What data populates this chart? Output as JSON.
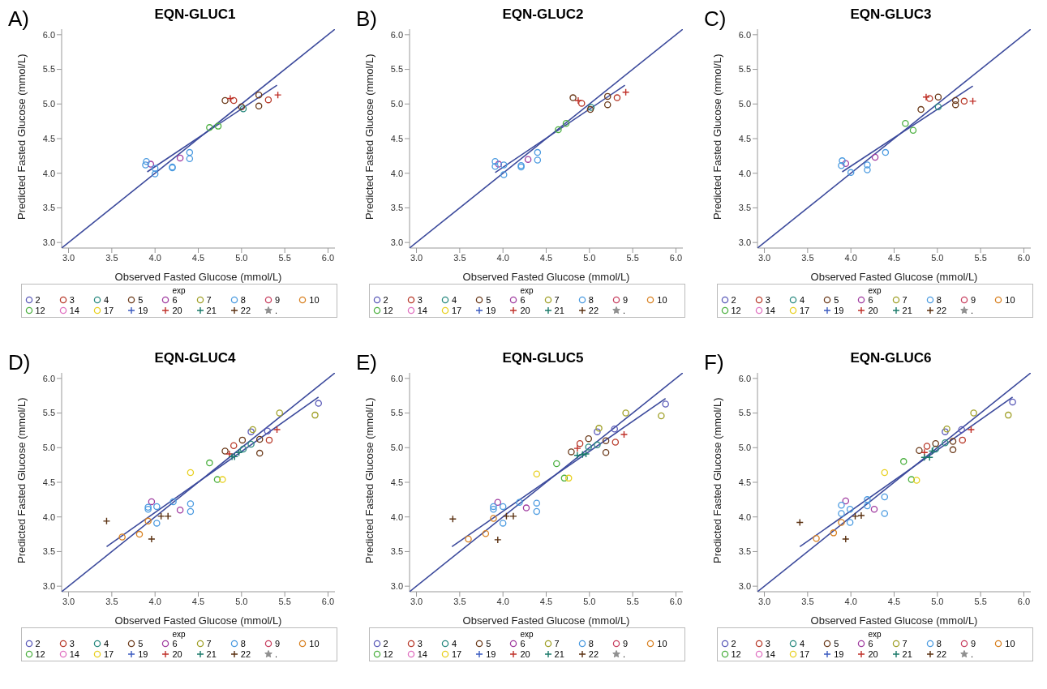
{
  "chart_data": [
    {
      "type": "scatter",
      "title": "EQN-GLUC1",
      "xlabel": "Observed Fasted Glucose (mmol/L)",
      "ylabel": "Predicted Fasted Glucose (mmol/L)",
      "legend_title": "exp",
      "legend": "bottom",
      "annotations": [
        "A)"
      ],
      "xlim": [
        2.92,
        6.08
      ],
      "ylim": [
        2.92,
        6.08
      ],
      "xticks": [
        {
          "value": 3,
          "label": "3.0"
        },
        {
          "value": 3.5,
          "label": "3.5"
        },
        {
          "value": 4,
          "label": "4.0"
        },
        {
          "value": 4.5,
          "label": "4.5"
        },
        {
          "value": 5,
          "label": "5.0"
        },
        {
          "value": 5.5,
          "label": "5.5"
        },
        {
          "value": 6,
          "label": "6.0"
        }
      ],
      "yticks": [
        {
          "value": 3,
          "label": "3.0"
        },
        {
          "value": 3.5,
          "label": "3.5"
        },
        {
          "value": 4,
          "label": "4.0"
        },
        {
          "value": 4.5,
          "label": "4.5"
        },
        {
          "value": 5,
          "label": "5.0"
        },
        {
          "value": 5.5,
          "label": "5.5"
        },
        {
          "value": 6,
          "label": "6.0"
        }
      ],
      "series": [
        {
          "name": "2",
          "color": "#5a5ab8",
          "marker": "circle"
        },
        {
          "name": "3",
          "color": "#b83a2a",
          "marker": "circle",
          "x": [
            4.91,
            5.31
          ],
          "values": [
            5.05,
            5.06
          ]
        },
        {
          "name": "4",
          "color": "#2a8a80",
          "marker": "circle",
          "x": [
            5.02
          ],
          "values": [
            4.93
          ]
        },
        {
          "name": "5",
          "color": "#6b3a1a",
          "marker": "circle",
          "x": [
            4.81,
            5.0,
            5.2,
            5.2
          ],
          "values": [
            5.05,
            4.96,
            5.13,
            4.97
          ]
        },
        {
          "name": "6",
          "color": "#a03ca0",
          "marker": "circle",
          "x": [
            3.95,
            4.29
          ],
          "values": [
            4.13,
            4.22
          ]
        },
        {
          "name": "7",
          "color": "#a0a028",
          "marker": "circle"
        },
        {
          "name": "8",
          "color": "#4a9ae0",
          "marker": "circle",
          "x": [
            3.9,
            3.89,
            4.0,
            4.0,
            4.2,
            4.2,
            4.4,
            4.4
          ],
          "values": [
            4.17,
            4.12,
            4.07,
            3.99,
            4.09,
            4.08,
            4.3,
            4.21
          ]
        },
        {
          "name": "9",
          "color": "#c84060",
          "marker": "circle"
        },
        {
          "name": "10",
          "color": "#d88020",
          "marker": "circle"
        },
        {
          "name": "12",
          "color": "#4cb040",
          "marker": "circle",
          "x": [
            4.63,
            4.73
          ],
          "values": [
            4.66,
            4.68
          ]
        },
        {
          "name": "14",
          "color": "#e070c0",
          "marker": "circle"
        },
        {
          "name": "17",
          "color": "#e8d020",
          "marker": "circle"
        },
        {
          "name": "19",
          "color": "#3a5ac0",
          "marker": "cross"
        },
        {
          "name": "20",
          "color": "#c03028",
          "marker": "cross",
          "x": [
            4.87,
            5.42
          ],
          "values": [
            5.08,
            5.13
          ]
        },
        {
          "name": "21",
          "color": "#1a7a6a",
          "marker": "cross"
        },
        {
          "name": "22",
          "color": "#5a3010",
          "marker": "cross"
        },
        {
          "name": ".",
          "color": "#909090",
          "marker": "star"
        },
        {
          "type": "line",
          "color": "#3c4a9c",
          "x": [
            2.92,
            6.08
          ],
          "values": [
            2.92,
            6.08
          ]
        },
        {
          "type": "line",
          "color": "#3c4a9c",
          "x": [
            3.91,
            5.41
          ],
          "values": [
            4.02,
            5.27
          ]
        }
      ]
    },
    {
      "type": "scatter",
      "title": "EQN-GLUC2",
      "xlabel": "Observed Fasted Glucose (mmol/L)",
      "ylabel": "Predicted Fasted Glucose (mmol/L)",
      "legend_title": "exp",
      "legend": "bottom",
      "annotations": [
        "B)"
      ],
      "xlim": [
        2.92,
        6.08
      ],
      "ylim": [
        2.92,
        6.08
      ],
      "xticks": [
        {
          "value": 3,
          "label": "3.0"
        },
        {
          "value": 3.5,
          "label": "3.5"
        },
        {
          "value": 4,
          "label": "4.0"
        },
        {
          "value": 4.5,
          "label": "4.5"
        },
        {
          "value": 5,
          "label": "5.0"
        },
        {
          "value": 5.5,
          "label": "5.5"
        },
        {
          "value": 6,
          "label": "6.0"
        }
      ],
      "yticks": [
        {
          "value": 3,
          "label": "3.0"
        },
        {
          "value": 3.5,
          "label": "3.5"
        },
        {
          "value": 4,
          "label": "4.0"
        },
        {
          "value": 4.5,
          "label": "4.5"
        },
        {
          "value": 5,
          "label": "5.0"
        },
        {
          "value": 5.5,
          "label": "5.5"
        },
        {
          "value": 6,
          "label": "6.0"
        }
      ],
      "series": [
        {
          "name": "2",
          "color": "#5a5ab8",
          "marker": "circle"
        },
        {
          "name": "3",
          "color": "#b83a2a",
          "marker": "circle",
          "x": [
            4.91,
            5.32
          ],
          "values": [
            5.01,
            5.09
          ]
        },
        {
          "name": "4",
          "color": "#2a8a80",
          "marker": "circle",
          "x": [
            5.02
          ],
          "values": [
            4.95
          ]
        },
        {
          "name": "5",
          "color": "#6b3a1a",
          "marker": "circle",
          "x": [
            4.81,
            5.01,
            5.21,
            5.21
          ],
          "values": [
            5.09,
            4.92,
            5.11,
            4.99
          ]
        },
        {
          "name": "6",
          "color": "#a03ca0",
          "marker": "circle",
          "x": [
            3.95,
            4.29
          ],
          "values": [
            4.13,
            4.2
          ]
        },
        {
          "name": "7",
          "color": "#a0a028",
          "marker": "circle"
        },
        {
          "name": "8",
          "color": "#4a9ae0",
          "marker": "circle",
          "x": [
            3.91,
            3.91,
            4.01,
            4.01,
            4.21,
            4.21,
            4.4,
            4.4
          ],
          "values": [
            4.17,
            4.1,
            4.12,
            3.98,
            4.11,
            4.09,
            4.3,
            4.19
          ]
        },
        {
          "name": "9",
          "color": "#c84060",
          "marker": "circle"
        },
        {
          "name": "10",
          "color": "#d88020",
          "marker": "circle"
        },
        {
          "name": "12",
          "color": "#4cb040",
          "marker": "circle",
          "x": [
            4.64,
            4.73
          ],
          "values": [
            4.63,
            4.72
          ]
        },
        {
          "name": "14",
          "color": "#e070c0",
          "marker": "circle"
        },
        {
          "name": "17",
          "color": "#e8d020",
          "marker": "circle"
        },
        {
          "name": "19",
          "color": "#3a5ac0",
          "marker": "cross"
        },
        {
          "name": "20",
          "color": "#c03028",
          "marker": "cross",
          "x": [
            4.87,
            5.42
          ],
          "values": [
            5.05,
            5.17
          ]
        },
        {
          "name": "21",
          "color": "#1a7a6a",
          "marker": "cross"
        },
        {
          "name": "22",
          "color": "#5a3010",
          "marker": "cross"
        },
        {
          "name": ".",
          "color": "#909090",
          "marker": "star"
        },
        {
          "type": "line",
          "color": "#3c4a9c",
          "x": [
            2.92,
            6.08
          ],
          "values": [
            2.92,
            6.08
          ]
        },
        {
          "type": "line",
          "color": "#3c4a9c",
          "x": [
            3.91,
            5.41
          ],
          "values": [
            4.01,
            5.27
          ]
        }
      ]
    },
    {
      "type": "scatter",
      "title": "EQN-GLUC3",
      "xlabel": "Observed Fasted Glucose (mmol/L)",
      "ylabel": "Predicted Fasted Glucose (mmol/L)",
      "legend_title": "exp",
      "legend": "bottom",
      "annotations": [
        "C)"
      ],
      "xlim": [
        2.92,
        6.08
      ],
      "ylim": [
        2.92,
        6.08
      ],
      "xticks": [
        {
          "value": 3,
          "label": "3.0"
        },
        {
          "value": 3.5,
          "label": "3.5"
        },
        {
          "value": 4,
          "label": "4.0"
        },
        {
          "value": 4.5,
          "label": "4.5"
        },
        {
          "value": 5,
          "label": "5.0"
        },
        {
          "value": 5.5,
          "label": "5.5"
        },
        {
          "value": 6,
          "label": "6.0"
        }
      ],
      "yticks": [
        {
          "value": 3,
          "label": "3.0"
        },
        {
          "value": 3.5,
          "label": "3.5"
        },
        {
          "value": 4,
          "label": "4.0"
        },
        {
          "value": 4.5,
          "label": "4.5"
        },
        {
          "value": 5,
          "label": "5.0"
        },
        {
          "value": 5.5,
          "label": "5.5"
        },
        {
          "value": 6,
          "label": "6.0"
        }
      ],
      "series": [
        {
          "name": "2",
          "color": "#5a5ab8",
          "marker": "circle"
        },
        {
          "name": "3",
          "color": "#b83a2a",
          "marker": "circle",
          "x": [
            4.91,
            5.31
          ],
          "values": [
            5.08,
            5.04
          ]
        },
        {
          "name": "4",
          "color": "#2a8a80",
          "marker": "circle",
          "x": [
            5.01
          ],
          "values": [
            4.96
          ]
        },
        {
          "name": "5",
          "color": "#6b3a1a",
          "marker": "circle",
          "x": [
            4.81,
            5.01,
            5.21,
            5.21
          ],
          "values": [
            4.92,
            5.1,
            5.05,
            4.99
          ]
        },
        {
          "name": "6",
          "color": "#a03ca0",
          "marker": "circle",
          "x": [
            3.94,
            4.28
          ],
          "values": [
            4.14,
            4.23
          ]
        },
        {
          "name": "7",
          "color": "#a0a028",
          "marker": "circle"
        },
        {
          "name": "8",
          "color": "#4a9ae0",
          "marker": "circle",
          "x": [
            3.9,
            3.89,
            4.0,
            4.19,
            4.19,
            4.4
          ],
          "values": [
            4.18,
            4.11,
            4.01,
            4.12,
            4.05,
            4.3
          ]
        },
        {
          "name": "9",
          "color": "#c84060",
          "marker": "circle"
        },
        {
          "name": "10",
          "color": "#d88020",
          "marker": "circle"
        },
        {
          "name": "12",
          "color": "#4cb040",
          "marker": "circle",
          "x": [
            4.63,
            4.72
          ],
          "values": [
            4.72,
            4.62
          ]
        },
        {
          "name": "14",
          "color": "#e070c0",
          "marker": "circle"
        },
        {
          "name": "17",
          "color": "#e8d020",
          "marker": "circle"
        },
        {
          "name": "19",
          "color": "#3a5ac0",
          "marker": "cross"
        },
        {
          "name": "20",
          "color": "#c03028",
          "marker": "cross",
          "x": [
            4.87,
            5.41
          ],
          "values": [
            5.1,
            5.04
          ]
        },
        {
          "name": "21",
          "color": "#1a7a6a",
          "marker": "cross"
        },
        {
          "name": "22",
          "color": "#5a3010",
          "marker": "cross"
        },
        {
          "name": ".",
          "color": "#909090",
          "marker": "star"
        },
        {
          "type": "line",
          "color": "#3c4a9c",
          "x": [
            2.92,
            6.08
          ],
          "values": [
            2.92,
            6.08
          ]
        },
        {
          "type": "line",
          "color": "#3c4a9c",
          "x": [
            3.9,
            5.41
          ],
          "values": [
            4.02,
            5.26
          ]
        }
      ]
    },
    {
      "type": "scatter",
      "title": "EQN-GLUC4",
      "xlabel": "Observed Fasted Glucose (mmol/L)",
      "ylabel": "Predicted Fasted Glucose (mmol/L)",
      "legend_title": "exp",
      "legend": "bottom",
      "annotations": [
        "D)"
      ],
      "xlim": [
        2.92,
        6.08
      ],
      "ylim": [
        2.92,
        6.08
      ],
      "xticks": [
        {
          "value": 3,
          "label": "3.0"
        },
        {
          "value": 3.5,
          "label": "3.5"
        },
        {
          "value": 4,
          "label": "4.0"
        },
        {
          "value": 4.5,
          "label": "4.5"
        },
        {
          "value": 5,
          "label": "5.0"
        },
        {
          "value": 5.5,
          "label": "5.5"
        },
        {
          "value": 6,
          "label": "6.0"
        }
      ],
      "yticks": [
        {
          "value": 3,
          "label": "3.0"
        },
        {
          "value": 3.5,
          "label": "3.5"
        },
        {
          "value": 4,
          "label": "4.0"
        },
        {
          "value": 4.5,
          "label": "4.5"
        },
        {
          "value": 5,
          "label": "5.0"
        },
        {
          "value": 5.5,
          "label": "5.5"
        },
        {
          "value": 6,
          "label": "6.0"
        }
      ],
      "series": [
        {
          "name": "2",
          "color": "#5a5ab8",
          "marker": "circle",
          "x": [
            5.11,
            5.3,
            5.89
          ],
          "values": [
            5.23,
            5.24,
            5.64
          ]
        },
        {
          "name": "3",
          "color": "#b83a2a",
          "marker": "circle",
          "x": [
            4.91,
            5.32
          ],
          "values": [
            5.03,
            5.11
          ]
        },
        {
          "name": "4",
          "color": "#2a8a80",
          "marker": "circle",
          "x": [
            5.02,
            5.11
          ],
          "values": [
            4.98,
            5.05
          ]
        },
        {
          "name": "5",
          "color": "#6b3a1a",
          "marker": "circle",
          "x": [
            4.81,
            5.01,
            5.21,
            5.21
          ],
          "values": [
            4.95,
            5.11,
            5.12,
            4.92
          ]
        },
        {
          "name": "6",
          "color": "#a03ca0",
          "marker": "circle",
          "x": [
            3.96,
            4.29
          ],
          "values": [
            4.22,
            4.1
          ]
        },
        {
          "name": "7",
          "color": "#a0a028",
          "marker": "circle",
          "x": [
            5.13,
            5.44,
            5.85
          ],
          "values": [
            5.26,
            5.5,
            5.47
          ]
        },
        {
          "name": "8",
          "color": "#4a9ae0",
          "marker": "circle",
          "x": [
            3.92,
            3.92,
            4.02,
            4.02,
            4.21,
            4.41,
            4.41
          ],
          "values": [
            4.14,
            4.11,
            4.15,
            3.91,
            4.22,
            4.19,
            4.08
          ]
        },
        {
          "name": "9",
          "color": "#c84060",
          "marker": "circle"
        },
        {
          "name": "10",
          "color": "#d88020",
          "marker": "circle",
          "x": [
            3.62,
            3.82,
            3.92
          ],
          "values": [
            3.71,
            3.75,
            3.94
          ]
        },
        {
          "name": "12",
          "color": "#4cb040",
          "marker": "circle",
          "x": [
            4.63,
            4.72
          ],
          "values": [
            4.78,
            4.54
          ]
        },
        {
          "name": "14",
          "color": "#e070c0",
          "marker": "circle"
        },
        {
          "name": "17",
          "color": "#e8d020",
          "marker": "circle",
          "x": [
            4.41,
            4.78
          ],
          "values": [
            4.64,
            4.54
          ]
        },
        {
          "name": "19",
          "color": "#3a5ac0",
          "marker": "cross"
        },
        {
          "name": "20",
          "color": "#c03028",
          "marker": "cross",
          "x": [
            4.86,
            5.41
          ],
          "values": [
            4.91,
            5.26
          ]
        },
        {
          "name": "21",
          "color": "#1a7a6a",
          "marker": "cross",
          "x": [
            4.89,
            4.92,
            4.97
          ],
          "values": [
            4.87,
            4.87,
            4.93
          ]
        },
        {
          "name": "22",
          "color": "#5a3010",
          "marker": "cross",
          "x": [
            3.44,
            3.96,
            4.07,
            4.15
          ],
          "values": [
            3.94,
            3.68,
            4.01,
            4.01
          ]
        },
        {
          "name": ".",
          "color": "#909090",
          "marker": "star"
        },
        {
          "type": "line",
          "color": "#3c4a9c",
          "x": [
            2.92,
            6.08
          ],
          "values": [
            2.92,
            6.08
          ]
        },
        {
          "type": "line",
          "color": "#3c4a9c",
          "x": [
            3.44,
            5.89
          ],
          "values": [
            3.57,
            5.73
          ]
        }
      ]
    },
    {
      "type": "scatter",
      "title": "EQN-GLUC5",
      "xlabel": "Observed Fasted Glucose (mmol/L)",
      "ylabel": "Predicted Fasted Glucose (mmol/L)",
      "legend_title": "exp",
      "legend": "bottom",
      "annotations": [
        "E)"
      ],
      "xlim": [
        2.92,
        6.08
      ],
      "ylim": [
        2.92,
        6.08
      ],
      "xticks": [
        {
          "value": 3,
          "label": "3.0"
        },
        {
          "value": 3.5,
          "label": "3.5"
        },
        {
          "value": 4,
          "label": "4.0"
        },
        {
          "value": 4.5,
          "label": "4.5"
        },
        {
          "value": 5,
          "label": "5.0"
        },
        {
          "value": 5.5,
          "label": "5.5"
        },
        {
          "value": 6,
          "label": "6.0"
        }
      ],
      "yticks": [
        {
          "value": 3,
          "label": "3.0"
        },
        {
          "value": 3.5,
          "label": "3.5"
        },
        {
          "value": 4,
          "label": "4.0"
        },
        {
          "value": 4.5,
          "label": "4.5"
        },
        {
          "value": 5,
          "label": "5.0"
        },
        {
          "value": 5.5,
          "label": "5.5"
        },
        {
          "value": 6,
          "label": "6.0"
        }
      ],
      "series": [
        {
          "name": "2",
          "color": "#5a5ab8",
          "marker": "circle",
          "x": [
            5.09,
            5.29,
            5.88
          ],
          "values": [
            5.23,
            5.27,
            5.63
          ]
        },
        {
          "name": "3",
          "color": "#b83a2a",
          "marker": "circle",
          "x": [
            4.89,
            5.3
          ],
          "values": [
            5.06,
            5.08
          ]
        },
        {
          "name": "4",
          "color": "#2a8a80",
          "marker": "circle",
          "x": [
            4.99,
            5.09
          ],
          "values": [
            5.01,
            5.04
          ]
        },
        {
          "name": "5",
          "color": "#6b3a1a",
          "marker": "circle",
          "x": [
            4.79,
            4.99,
            5.19,
            5.19
          ],
          "values": [
            4.94,
            5.13,
            5.1,
            4.93
          ]
        },
        {
          "name": "6",
          "color": "#a03ca0",
          "marker": "circle",
          "x": [
            3.94,
            4.27
          ],
          "values": [
            4.21,
            4.13
          ]
        },
        {
          "name": "7",
          "color": "#a0a028",
          "marker": "circle",
          "x": [
            5.11,
            5.42,
            5.83
          ],
          "values": [
            5.28,
            5.5,
            5.46
          ]
        },
        {
          "name": "8",
          "color": "#4a9ae0",
          "marker": "circle",
          "x": [
            3.89,
            3.89,
            4.0,
            4.0,
            4.19,
            4.39,
            4.39
          ],
          "values": [
            4.15,
            4.11,
            4.15,
            3.91,
            4.21,
            4.2,
            4.08
          ]
        },
        {
          "name": "9",
          "color": "#c84060",
          "marker": "circle"
        },
        {
          "name": "10",
          "color": "#d88020",
          "marker": "circle",
          "x": [
            3.6,
            3.8,
            3.89
          ],
          "values": [
            3.68,
            3.76,
            3.98
          ]
        },
        {
          "name": "12",
          "color": "#4cb040",
          "marker": "circle",
          "x": [
            4.62,
            4.71
          ],
          "values": [
            4.77,
            4.56
          ]
        },
        {
          "name": "14",
          "color": "#e070c0",
          "marker": "circle"
        },
        {
          "name": "17",
          "color": "#e8d020",
          "marker": "circle",
          "x": [
            4.39,
            4.76
          ],
          "values": [
            4.62,
            4.56
          ]
        },
        {
          "name": "19",
          "color": "#3a5ac0",
          "marker": "cross"
        },
        {
          "name": "20",
          "color": "#c03028",
          "marker": "cross",
          "x": [
            4.86,
            5.4
          ],
          "values": [
            4.99,
            5.19
          ]
        },
        {
          "name": "21",
          "color": "#1a7a6a",
          "marker": "cross",
          "x": [
            4.86,
            4.92,
            4.96
          ],
          "values": [
            4.89,
            4.9,
            4.91
          ]
        },
        {
          "name": "22",
          "color": "#5a3010",
          "marker": "cross",
          "x": [
            3.42,
            3.94,
            4.04,
            4.12
          ],
          "values": [
            3.97,
            3.67,
            4.01,
            4.01
          ]
        },
        {
          "name": ".",
          "color": "#909090",
          "marker": "star"
        },
        {
          "type": "line",
          "color": "#3c4a9c",
          "x": [
            2.92,
            6.08
          ],
          "values": [
            2.92,
            6.08
          ]
        },
        {
          "type": "line",
          "color": "#3c4a9c",
          "x": [
            3.41,
            5.88
          ],
          "values": [
            3.57,
            5.71
          ]
        }
      ]
    },
    {
      "type": "scatter",
      "title": "EQN-GLUC6",
      "xlabel": "Observed Fasted Glucose (mmol/L)",
      "ylabel": "Predicted Fasted Glucose (mmol/L)",
      "legend_title": "exp",
      "legend": "bottom",
      "annotations": [
        "F)"
      ],
      "xlim": [
        2.92,
        6.08
      ],
      "ylim": [
        2.92,
        6.08
      ],
      "xticks": [
        {
          "value": 3,
          "label": "3.0"
        },
        {
          "value": 3.5,
          "label": "3.5"
        },
        {
          "value": 4,
          "label": "4.0"
        },
        {
          "value": 4.5,
          "label": "4.5"
        },
        {
          "value": 5,
          "label": "5.0"
        },
        {
          "value": 5.5,
          "label": "5.5"
        },
        {
          "value": 6,
          "label": "6.0"
        }
      ],
      "yticks": [
        {
          "value": 3,
          "label": "3.0"
        },
        {
          "value": 3.5,
          "label": "3.5"
        },
        {
          "value": 4,
          "label": "4.0"
        },
        {
          "value": 4.5,
          "label": "4.5"
        },
        {
          "value": 5,
          "label": "5.0"
        },
        {
          "value": 5.5,
          "label": "5.5"
        },
        {
          "value": 6,
          "label": "6.0"
        }
      ],
      "series": [
        {
          "name": "2",
          "color": "#5a5ab8",
          "marker": "circle",
          "x": [
            5.09,
            5.28,
            5.87
          ],
          "values": [
            5.23,
            5.26,
            5.66
          ]
        },
        {
          "name": "3",
          "color": "#b83a2a",
          "marker": "circle",
          "x": [
            4.88,
            5.29
          ],
          "values": [
            5.02,
            5.11
          ]
        },
        {
          "name": "4",
          "color": "#2a8a80",
          "marker": "circle",
          "x": [
            4.98,
            5.09
          ],
          "values": [
            4.98,
            5.07
          ]
        },
        {
          "name": "5",
          "color": "#6b3a1a",
          "marker": "circle",
          "x": [
            4.79,
            4.98,
            5.18,
            5.18
          ],
          "values": [
            4.96,
            5.06,
            5.09,
            4.97
          ]
        },
        {
          "name": "6",
          "color": "#a03ca0",
          "marker": "circle",
          "x": [
            3.94,
            4.27
          ],
          "values": [
            4.23,
            4.11
          ]
        },
        {
          "name": "7",
          "color": "#a0a028",
          "marker": "circle",
          "x": [
            5.11,
            5.42,
            5.82
          ],
          "values": [
            5.27,
            5.5,
            5.47
          ]
        },
        {
          "name": "8",
          "color": "#4a9ae0",
          "marker": "circle",
          "x": [
            3.89,
            3.89,
            3.99,
            3.99,
            4.19,
            4.19,
            4.39,
            4.39
          ],
          "values": [
            4.17,
            4.05,
            4.11,
            3.92,
            4.25,
            4.16,
            4.29,
            4.05
          ]
        },
        {
          "name": "9",
          "color": "#c84060",
          "marker": "circle"
        },
        {
          "name": "10",
          "color": "#d88020",
          "marker": "circle",
          "x": [
            3.6,
            3.8,
            3.89
          ],
          "values": [
            3.69,
            3.77,
            3.92
          ]
        },
        {
          "name": "12",
          "color": "#4cb040",
          "marker": "circle",
          "x": [
            4.61,
            4.7
          ],
          "values": [
            4.8,
            4.54
          ]
        },
        {
          "name": "14",
          "color": "#e070c0",
          "marker": "circle"
        },
        {
          "name": "17",
          "color": "#e8d020",
          "marker": "circle",
          "x": [
            4.39,
            4.76
          ],
          "values": [
            4.64,
            4.53
          ]
        },
        {
          "name": "19",
          "color": "#3a5ac0",
          "marker": "cross"
        },
        {
          "name": "20",
          "color": "#c03028",
          "marker": "cross",
          "x": [
            4.85,
            5.39
          ],
          "values": [
            4.93,
            5.26
          ]
        },
        {
          "name": "21",
          "color": "#1a7a6a",
          "marker": "cross",
          "x": [
            4.85,
            4.91,
            4.94
          ],
          "values": [
            4.86,
            4.86,
            4.95
          ]
        },
        {
          "name": "22",
          "color": "#5a3010",
          "marker": "cross",
          "x": [
            3.41,
            3.94,
            4.05,
            4.12
          ],
          "values": [
            3.92,
            3.68,
            4.01,
            4.02
          ]
        },
        {
          "name": ".",
          "color": "#909090",
          "marker": "star"
        },
        {
          "type": "line",
          "color": "#3c4a9c",
          "x": [
            2.92,
            6.08
          ],
          "values": [
            2.92,
            6.08
          ]
        },
        {
          "type": "line",
          "color": "#3c4a9c",
          "x": [
            3.41,
            5.87
          ],
          "values": [
            3.57,
            5.73
          ]
        }
      ]
    }
  ]
}
